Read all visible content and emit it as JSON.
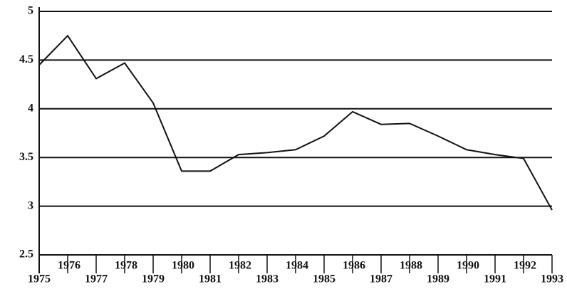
{
  "chart_data": {
    "type": "line",
    "x": [
      1975,
      1976,
      1977,
      1978,
      1979,
      1980,
      1981,
      1982,
      1983,
      1984,
      1985,
      1986,
      1987,
      1988,
      1989,
      1990,
      1991,
      1992,
      1993
    ],
    "series": [
      {
        "color": "#111111",
        "values": [
          4.45,
          4.75,
          4.31,
          4.47,
          4.06,
          3.36,
          3.36,
          3.53,
          3.55,
          3.58,
          3.72,
          3.97,
          3.84,
          3.85,
          3.72,
          3.58,
          3.53,
          3.49,
          2.96
        ]
      }
    ],
    "xlim": [
      1975,
      1993
    ],
    "xticks": [
      1975,
      1976,
      1977,
      1978,
      1979,
      1980,
      1981,
      1982,
      1983,
      1984,
      1985,
      1986,
      1987,
      1988,
      1989,
      1990,
      1991,
      1992,
      1993
    ],
    "ylim": [
      2.5,
      5
    ],
    "yticks": [
      2.5,
      3,
      3.5,
      4,
      4.5,
      5
    ],
    "grid": true
  }
}
